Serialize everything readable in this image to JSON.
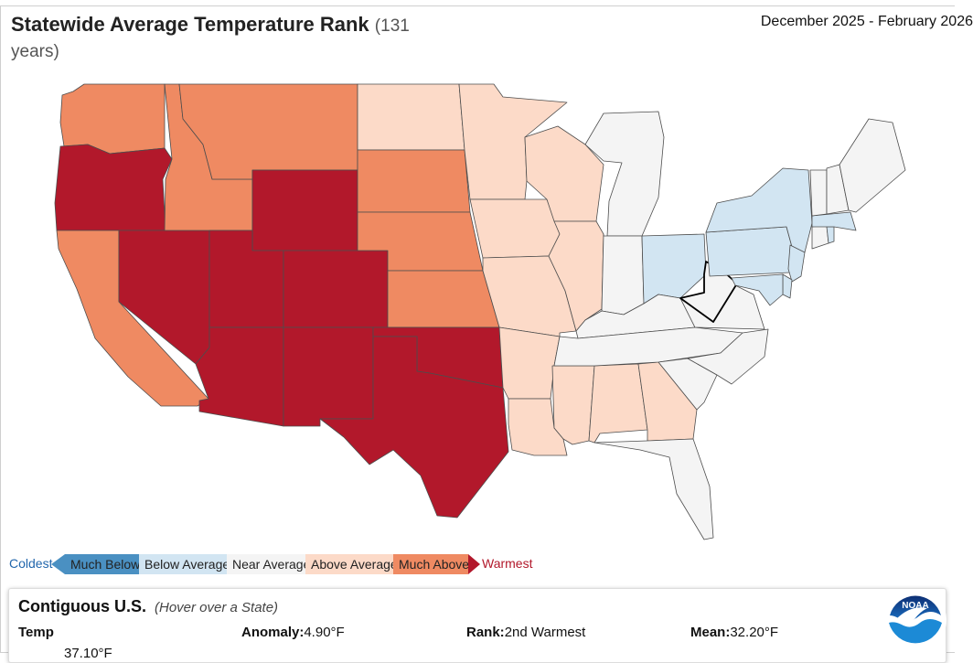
{
  "header": {
    "title": "Statewide Average Temperature Rank",
    "years": "(131 years)",
    "period": "December 2025 - February 2026"
  },
  "legend": {
    "coldest": "Coldest",
    "warmest": "Warmest",
    "categories": [
      {
        "key": "much_below",
        "label": "Much Below",
        "color": "#4a90c2"
      },
      {
        "key": "below",
        "label": "Below Average",
        "color": "#d2e5f2"
      },
      {
        "key": "near",
        "label": "Near Average",
        "color": "#f4f4f4"
      },
      {
        "key": "above",
        "label": "Above Average",
        "color": "#fcdac8"
      },
      {
        "key": "much_above",
        "label": "Much Above",
        "color": "#ef8a62"
      },
      {
        "key": "record",
        "label": "",
        "color": "#b2182b"
      }
    ],
    "coldest_color": "#2166ac",
    "warmest_color": "#b2182b"
  },
  "states": {
    "WA": "much_above",
    "OR": "record",
    "CA": "much_above",
    "NV": "record",
    "ID": "much_above",
    "MT": "much_above",
    "WY": "record",
    "UT": "record",
    "CO": "record",
    "AZ": "record",
    "NM": "record",
    "ND": "above",
    "SD": "much_above",
    "NE": "much_above",
    "KS": "much_above",
    "OK": "record",
    "TX": "record",
    "MN": "above",
    "IA": "above",
    "MO": "above",
    "AR": "above",
    "LA": "above",
    "WI": "above",
    "IL": "above",
    "MS": "above",
    "AL": "above",
    "GA": "above",
    "MI": "near",
    "IN": "near",
    "KY": "near",
    "TN": "near",
    "FL": "near",
    "SC": "near",
    "NC": "near",
    "VA": "near",
    "WV": "near",
    "OH": "below",
    "PA": "below",
    "NY": "below",
    "NJ": "below",
    "DE": "below",
    "MD": "below",
    "MA": "below",
    "RI": "below",
    "CT": "near",
    "VT": "near",
    "NH": "near",
    "ME": "near"
  },
  "info": {
    "region": "Contiguous U.S.",
    "hint": "(Hover over a State)",
    "variable": "Temp",
    "anomaly_label": "Anomaly:",
    "anomaly_value": "4.90°F",
    "rank_label": "Rank:",
    "rank_value": "2nd Warmest",
    "mean_label": "Mean:",
    "mean_value": "32.20°F",
    "next_row": "37.10°F"
  },
  "logo": {
    "text": "NOAA"
  }
}
